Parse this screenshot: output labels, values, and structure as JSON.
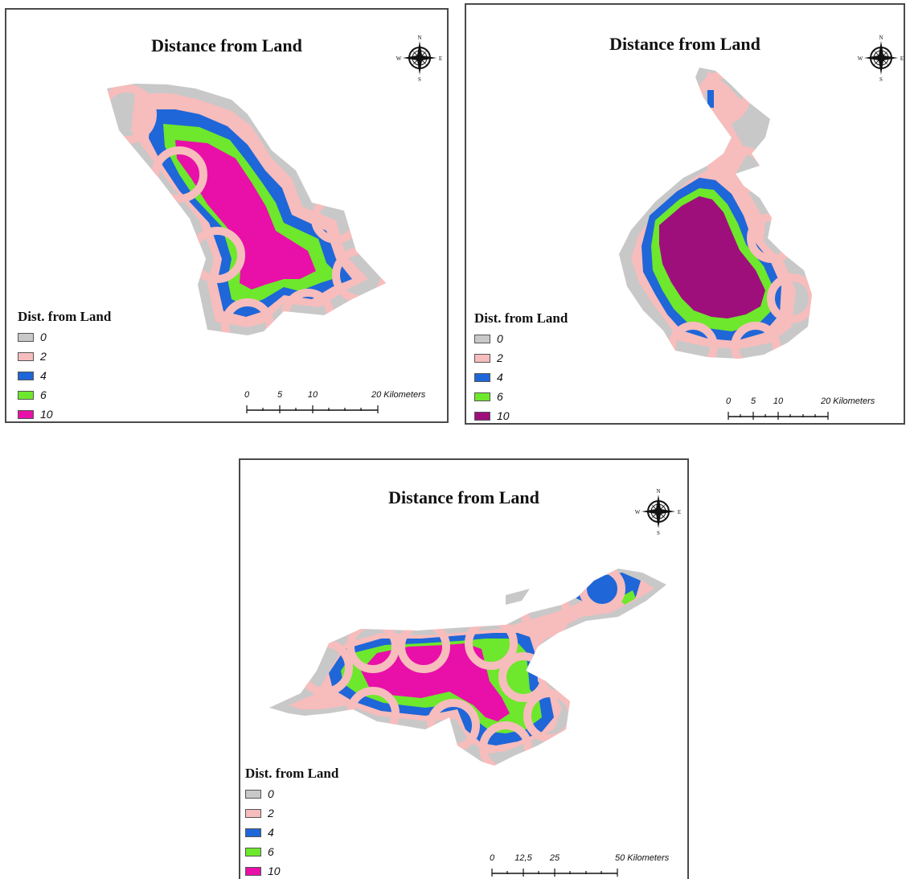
{
  "colors": {
    "d0": "#c8c8c8",
    "d2": "#f7bcbc",
    "d4": "#1f66d8",
    "d6": "#6de82c",
    "d10": "#e810a8",
    "d10_alt": "#9e0f7c",
    "outline": "#4a4a4a"
  },
  "panels": [
    {
      "title": "Distance from Land",
      "compass": {
        "n": "N",
        "s": "S",
        "e": "E",
        "w": "W"
      },
      "legend": {
        "title": "Dist. from Land",
        "items": [
          {
            "label": "0",
            "color": "#c8c8c8"
          },
          {
            "label": "2",
            "color": "#f7bcbc"
          },
          {
            "label": "4",
            "color": "#1f66d8"
          },
          {
            "label": "6",
            "color": "#6de82c"
          },
          {
            "label": "10",
            "color": "#e810a8"
          }
        ]
      },
      "scale": {
        "ticks": [
          "0",
          "5",
          "10"
        ],
        "end_label": "20 Kilometers"
      }
    },
    {
      "title": "Distance from Land",
      "compass": {
        "n": "N",
        "s": "S",
        "e": "E",
        "w": "W"
      },
      "legend": {
        "title": "Dist. from Land",
        "items": [
          {
            "label": "0",
            "color": "#c8c8c8"
          },
          {
            "label": "2",
            "color": "#f7bcbc"
          },
          {
            "label": "4",
            "color": "#1f66d8"
          },
          {
            "label": "6",
            "color": "#6de82c"
          },
          {
            "label": "10",
            "color": "#9e0f7c"
          }
        ]
      },
      "scale": {
        "ticks": [
          "0",
          "5",
          "10"
        ],
        "end_label": "20 Kilometers"
      }
    },
    {
      "title": "Distance from Land",
      "compass": {
        "n": "N",
        "s": "S",
        "e": "E",
        "w": "W"
      },
      "legend": {
        "title": "Dist. from Land",
        "items": [
          {
            "label": "0",
            "color": "#c8c8c8"
          },
          {
            "label": "2",
            "color": "#f7bcbc"
          },
          {
            "label": "4",
            "color": "#1f66d8"
          },
          {
            "label": "6",
            "color": "#6de82c"
          },
          {
            "label": "10",
            "color": "#e810a8"
          }
        ]
      },
      "scale": {
        "ticks": [
          "0",
          "12,5",
          "25"
        ],
        "end_label": "50 Kilometers"
      }
    }
  ]
}
